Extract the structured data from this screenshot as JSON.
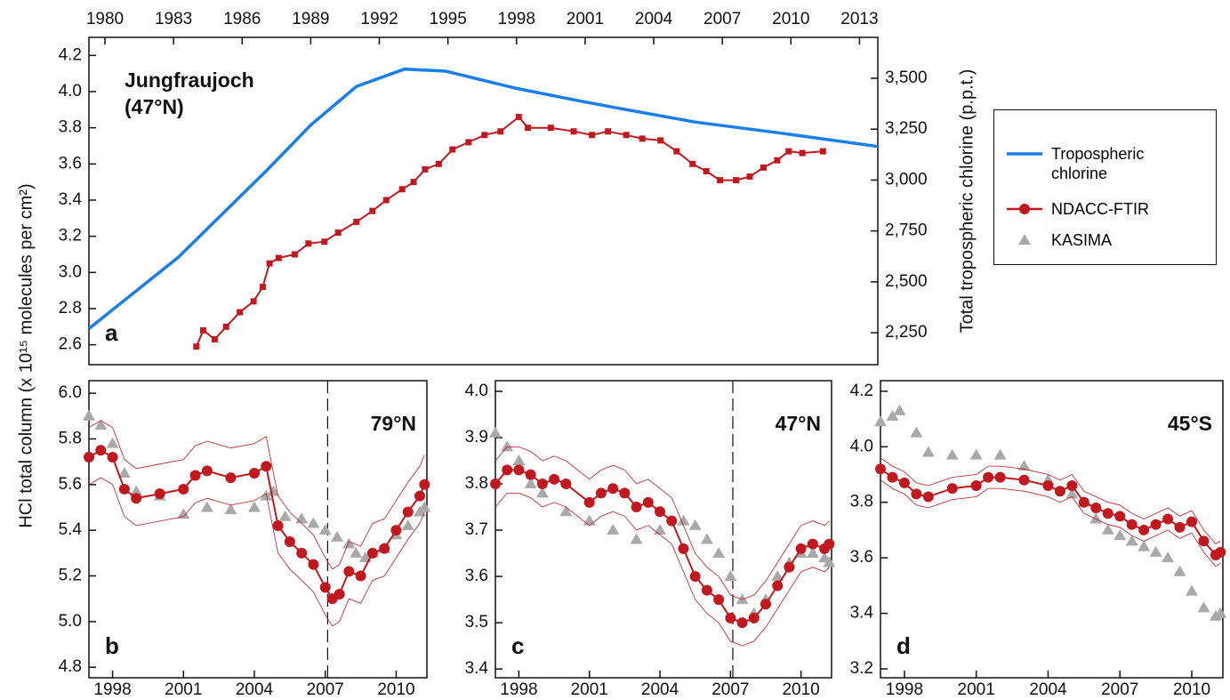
{
  "y_label": "HCl total column (x 10¹⁵ molecules per cm²)",
  "legend": [
    {
      "name": "Tropospheric chlorine",
      "color": "#1a7ee8",
      "marker": "none"
    },
    {
      "name": "NDACC-FTIR",
      "color": "#c0181e",
      "marker": "circle"
    },
    {
      "name": "KASIMA",
      "color": "#a9a9a9",
      "marker": "triangle"
    }
  ],
  "chart_data": [
    {
      "type": "line",
      "title": "Jungfraujoch",
      "subtitle": "(47°N)",
      "panel_label": "a",
      "x_axis": "top",
      "xlim": [
        1979.3,
        2013.8
      ],
      "xticks": [
        1980,
        1983,
        1986,
        1989,
        1992,
        1995,
        1998,
        2001,
        2004,
        2007,
        2010,
        2013
      ],
      "ylim": [
        2.49,
        4.3
      ],
      "yticks": [
        2.6,
        2.8,
        {
          "value": 3,
          "label": "3.0"
        },
        3.2,
        3.4,
        3.6,
        3.8,
        {
          "value": 4,
          "label": "4.0"
        },
        4.2
      ],
      "y2lim": [
        2093,
        3701
      ],
      "y2ticks": [
        {
          "value": 2250,
          "label": "2,250"
        },
        {
          "value": 2500,
          "label": "2,500"
        },
        {
          "value": 2750,
          "label": "2,750"
        },
        {
          "value": 3000,
          "label": "3,000"
        },
        {
          "value": 3250,
          "label": "3,250"
        },
        {
          "value": 3500,
          "label": "3,500"
        }
      ],
      "y2_label": "Total tropospheric chlorine (p.p.t.)",
      "series": [
        {
          "entry": 0,
          "axis": "y2",
          "marker": "none",
          "x": [
            1979.3,
            1983.2,
            1987.1,
            1989.0,
            1991.0,
            1993.1,
            1994.9,
            1998.0,
            2000.7,
            2002.6,
            2005.8,
            2009.6,
            2013.8
          ],
          "values": [
            2270,
            2620,
            3050,
            3270,
            3460,
            3545,
            3535,
            3450,
            3390,
            3350,
            3285,
            3230,
            3165
          ]
        },
        {
          "entry": 1,
          "marker": "square",
          "x": [
            1984.0,
            1984.3,
            1984.8,
            1985.3,
            1985.9,
            1986.5,
            1986.9,
            1987.2,
            1987.6,
            1988.3,
            1988.9,
            1989.6,
            1990.2,
            1991.0,
            1991.7,
            1992.3,
            1993.0,
            1993.5,
            1994.0,
            1994.6,
            1995.2,
            1995.9,
            1996.6,
            1997.3,
            1998.1,
            1998.5,
            1999.5,
            2000.5,
            2001.3,
            2002.0,
            2002.8,
            2003.5,
            2004.3,
            2005.0,
            2005.7,
            2006.3,
            2006.9,
            2007.6,
            2008.2,
            2008.8,
            2009.4,
            2009.9,
            2010.5,
            2011.4
          ],
          "values": [
            2.59,
            2.68,
            2.63,
            2.7,
            2.78,
            2.84,
            2.92,
            3.05,
            3.08,
            3.1,
            3.16,
            3.17,
            3.22,
            3.28,
            3.34,
            3.4,
            3.46,
            3.5,
            3.57,
            3.6,
            3.68,
            3.72,
            3.76,
            3.78,
            3.86,
            3.8,
            3.8,
            3.78,
            3.76,
            3.78,
            3.76,
            3.74,
            3.73,
            3.67,
            3.6,
            3.56,
            3.51,
            3.51,
            3.53,
            3.58,
            3.62,
            3.67,
            3.66,
            3.67
          ]
        }
      ]
    },
    {
      "type": "line",
      "title": "79°N",
      "panel_label": "b",
      "x_axis": "bottom",
      "vline": 2007.1,
      "xlim": [
        1997,
        2011.3
      ],
      "xticks": [
        1998,
        2001,
        2004,
        2007,
        2010
      ],
      "ylim": [
        4.754,
        6.055
      ],
      "yticks": [
        4.8,
        {
          "value": 5,
          "label": "5.0"
        },
        5.2,
        5.4,
        5.6,
        5.8,
        {
          "value": 6,
          "label": "6.0"
        }
      ],
      "series": [
        {
          "entry": 2,
          "marker": "triangle",
          "x": [
            1997,
            1997.5,
            1998,
            1998.5,
            1999,
            2000,
            2001,
            2002,
            2003,
            2004,
            2004.5,
            2004.8,
            2005.3,
            2006,
            2006.5,
            2007,
            2007.5,
            2008,
            2008.3,
            2008.7,
            2009,
            2009.5,
            2010,
            2010.5,
            2011,
            2011.2
          ],
          "values": [
            5.9,
            5.86,
            5.78,
            5.65,
            5.57,
            5.55,
            5.47,
            5.5,
            5.49,
            5.5,
            5.55,
            5.57,
            5.46,
            5.45,
            5.43,
            5.4,
            5.37,
            5.34,
            5.3,
            5.28,
            5.3,
            5.32,
            5.38,
            5.42,
            5.48,
            5.5
          ]
        },
        {
          "entry": 1,
          "marker": "circle",
          "x": [
            1997,
            1997.5,
            1998,
            1998.5,
            1999,
            2000,
            2001,
            2001.5,
            2002,
            2003,
            2004,
            2004.5,
            2005,
            2005.5,
            2006,
            2006.5,
            2007,
            2007.3,
            2007.6,
            2008,
            2008.5,
            2009,
            2009.5,
            2010,
            2010.5,
            2011,
            2011.2
          ],
          "values": [
            5.72,
            5.75,
            5.72,
            5.58,
            5.54,
            5.56,
            5.58,
            5.64,
            5.66,
            5.63,
            5.65,
            5.68,
            5.42,
            5.35,
            5.3,
            5.25,
            5.15,
            5.1,
            5.12,
            5.22,
            5.2,
            5.3,
            5.32,
            5.4,
            5.48,
            5.55,
            5.6
          ],
          "upper": [
            5.85,
            5.88,
            5.85,
            5.71,
            5.67,
            5.69,
            5.71,
            5.77,
            5.79,
            5.76,
            5.78,
            5.81,
            5.55,
            5.48,
            5.43,
            5.38,
            5.28,
            5.23,
            5.25,
            5.35,
            5.33,
            5.43,
            5.45,
            5.53,
            5.61,
            5.68,
            5.73
          ],
          "lower": [
            5.6,
            5.63,
            5.6,
            5.46,
            5.42,
            5.44,
            5.46,
            5.52,
            5.54,
            5.51,
            5.53,
            5.56,
            5.3,
            5.23,
            5.18,
            5.13,
            5.03,
            4.98,
            5.0,
            5.1,
            5.08,
            5.18,
            5.2,
            5.28,
            5.36,
            5.43,
            5.48
          ]
        }
      ]
    },
    {
      "type": "line",
      "title": "47°N",
      "panel_label": "c",
      "x_axis": "bottom",
      "vline": 2007.1,
      "xlim": [
        1997,
        2011.3
      ],
      "xticks": [
        1998,
        2001,
        2004,
        2007,
        2010
      ],
      "ylim": [
        3.381,
        4.023
      ],
      "yticks": [
        3.4,
        3.5,
        3.6,
        3.7,
        3.8,
        3.9,
        {
          "value": 4,
          "label": "4.0"
        }
      ],
      "series": [
        {
          "entry": 2,
          "marker": "triangle",
          "x": [
            1997,
            1997.5,
            1998,
            1998.5,
            1999,
            2000,
            2001,
            2002,
            2003,
            2004,
            2005,
            2005.5,
            2006,
            2006.5,
            2007,
            2007.5,
            2008,
            2008.5,
            2009,
            2009.5,
            2010,
            2010.5,
            2011,
            2011.2
          ],
          "values": [
            3.91,
            3.88,
            3.85,
            3.8,
            3.78,
            3.74,
            3.72,
            3.7,
            3.68,
            3.7,
            3.72,
            3.71,
            3.68,
            3.65,
            3.6,
            3.55,
            3.52,
            3.55,
            3.6,
            3.63,
            3.65,
            3.65,
            3.64,
            3.63
          ]
        },
        {
          "entry": 1,
          "marker": "circle",
          "x": [
            1997,
            1997.5,
            1998,
            1998.5,
            1999,
            1999.5,
            2000,
            2001,
            2001.5,
            2002,
            2002.5,
            2003,
            2003.5,
            2004,
            2004.5,
            2005,
            2005.5,
            2006,
            2006.5,
            2007,
            2007.5,
            2008,
            2008.5,
            2009,
            2009.5,
            2010,
            2010.5,
            2011,
            2011.2
          ],
          "values": [
            3.8,
            3.83,
            3.83,
            3.82,
            3.8,
            3.81,
            3.8,
            3.76,
            3.78,
            3.79,
            3.78,
            3.75,
            3.76,
            3.74,
            3.72,
            3.66,
            3.6,
            3.57,
            3.55,
            3.51,
            3.5,
            3.51,
            3.54,
            3.58,
            3.62,
            3.66,
            3.67,
            3.66,
            3.67
          ],
          "upper": [
            3.85,
            3.88,
            3.88,
            3.87,
            3.85,
            3.86,
            3.85,
            3.81,
            3.83,
            3.84,
            3.83,
            3.8,
            3.81,
            3.79,
            3.77,
            3.71,
            3.65,
            3.62,
            3.6,
            3.56,
            3.55,
            3.56,
            3.59,
            3.63,
            3.67,
            3.71,
            3.72,
            3.71,
            3.72
          ],
          "lower": [
            3.75,
            3.78,
            3.78,
            3.77,
            3.75,
            3.76,
            3.75,
            3.71,
            3.73,
            3.74,
            3.73,
            3.7,
            3.71,
            3.69,
            3.67,
            3.61,
            3.55,
            3.52,
            3.5,
            3.46,
            3.45,
            3.46,
            3.49,
            3.53,
            3.57,
            3.61,
            3.62,
            3.61,
            3.62
          ]
        }
      ]
    },
    {
      "type": "line",
      "title": "45°S",
      "panel_label": "d",
      "x_axis": "bottom",
      "xlim": [
        1997,
        2011.3
      ],
      "xticks": [
        1998,
        2001,
        2004,
        2007,
        2010
      ],
      "ylim": [
        3.168,
        4.238
      ],
      "yticks": [
        3.2,
        3.4,
        3.6,
        3.8,
        {
          "value": 4,
          "label": "4.0"
        },
        4.2
      ],
      "series": [
        {
          "entry": 2,
          "marker": "triangle",
          "x": [
            1997,
            1997.5,
            1997.8,
            1998.5,
            1999,
            2000,
            2001,
            2002,
            2003,
            2004,
            2005,
            2005.5,
            2006,
            2006.5,
            2007,
            2007.5,
            2008,
            2008.5,
            2009,
            2009.5,
            2010,
            2010.5,
            2011,
            2011.2
          ],
          "values": [
            4.09,
            4.11,
            4.13,
            4.05,
            3.98,
            3.97,
            3.97,
            3.97,
            3.93,
            3.88,
            3.83,
            3.8,
            3.74,
            3.7,
            3.68,
            3.66,
            3.64,
            3.62,
            3.6,
            3.55,
            3.48,
            3.42,
            3.39,
            3.4
          ]
        },
        {
          "entry": 1,
          "marker": "circle",
          "x": [
            1997,
            1997.5,
            1998,
            1998.5,
            1999,
            2000,
            2001,
            2001.5,
            2002,
            2003,
            2004,
            2004.5,
            2005,
            2005.5,
            2006,
            2006.5,
            2007,
            2007.5,
            2008,
            2008.5,
            2009,
            2009.5,
            2010,
            2010.5,
            2011,
            2011.2
          ],
          "values": [
            3.92,
            3.89,
            3.87,
            3.83,
            3.82,
            3.85,
            3.86,
            3.89,
            3.89,
            3.88,
            3.86,
            3.84,
            3.86,
            3.8,
            3.78,
            3.76,
            3.75,
            3.72,
            3.7,
            3.72,
            3.74,
            3.71,
            3.73,
            3.66,
            3.61,
            3.62
          ],
          "upper": [
            3.96,
            3.93,
            3.91,
            3.87,
            3.86,
            3.89,
            3.9,
            3.93,
            3.93,
            3.92,
            3.9,
            3.88,
            3.9,
            3.84,
            3.82,
            3.8,
            3.79,
            3.76,
            3.74,
            3.76,
            3.78,
            3.75,
            3.77,
            3.7,
            3.65,
            3.66
          ],
          "lower": [
            3.88,
            3.85,
            3.83,
            3.79,
            3.78,
            3.81,
            3.82,
            3.85,
            3.85,
            3.84,
            3.82,
            3.8,
            3.82,
            3.76,
            3.74,
            3.72,
            3.71,
            3.68,
            3.66,
            3.68,
            3.7,
            3.67,
            3.69,
            3.62,
            3.57,
            3.58
          ]
        }
      ]
    }
  ]
}
